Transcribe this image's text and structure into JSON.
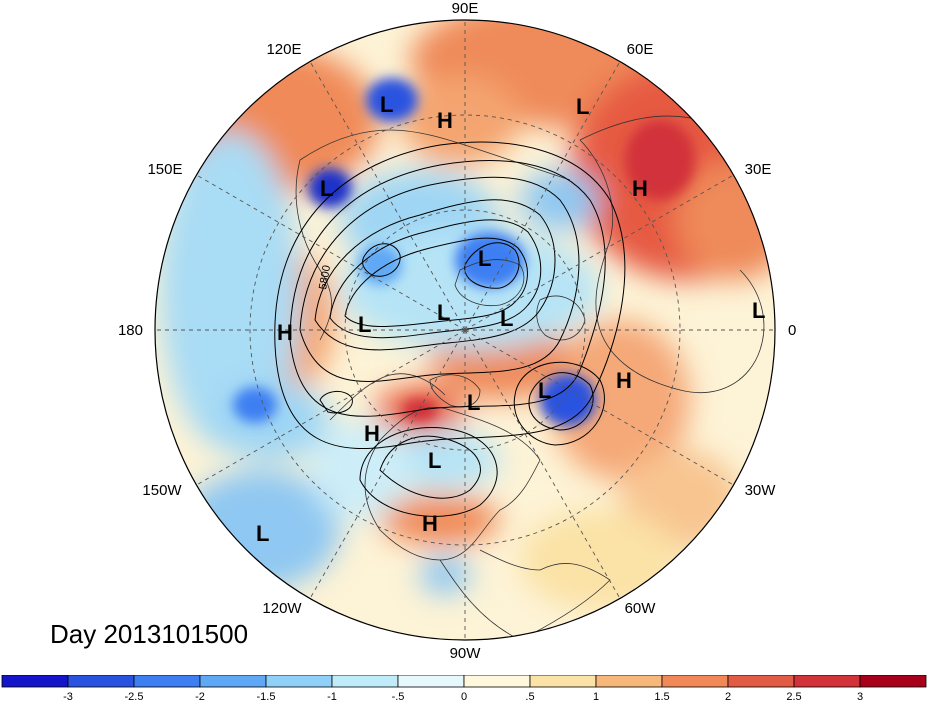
{
  "title": "Day 2013101500",
  "map": {
    "projection": "polar stereographic (north pole)",
    "graticule": "dashed",
    "longitude_labels": [
      "90E",
      "60E",
      "30E",
      "0",
      "30W",
      "60W",
      "90W",
      "120W",
      "150W",
      "180",
      "150E",
      "120E"
    ],
    "contour_label": "5800",
    "pressure_centers": [
      {
        "type": "L",
        "region": "north-east Siberia"
      },
      {
        "type": "H",
        "region": "north-central Siberia"
      },
      {
        "type": "L",
        "region": "north Russia"
      },
      {
        "type": "L",
        "region": "Kamchatka"
      },
      {
        "type": "H",
        "region": "western Russia"
      },
      {
        "type": "L",
        "region": "Arctic Ocean"
      },
      {
        "type": "L",
        "region": "Arctic (near Bering side)"
      },
      {
        "type": "L",
        "region": "Arctic (central)"
      },
      {
        "type": "L",
        "region": "Arctic (Atlantic side)"
      },
      {
        "type": "H",
        "region": "North Pacific (dateline)"
      },
      {
        "type": "L",
        "region": "North Africa"
      },
      {
        "type": "H",
        "region": "North Atlantic (east)"
      },
      {
        "type": "L",
        "region": "North Atlantic"
      },
      {
        "type": "L",
        "region": "Hudson Bay"
      },
      {
        "type": "H",
        "region": "Alaska / NE Pacific"
      },
      {
        "type": "L",
        "region": "central North America"
      },
      {
        "type": "H",
        "region": "Gulf of Mexico"
      },
      {
        "type": "L",
        "region": "subtropical Pacific"
      }
    ]
  },
  "colorbar": {
    "ticks": [
      "-3",
      "-2.5",
      "-2",
      "-1.5",
      "-1",
      "-.5",
      "0",
      ".5",
      "1",
      "1.5",
      "2",
      "2.5",
      "3"
    ],
    "colors": [
      "#1414c8",
      "#2a52e0",
      "#3d7ff2",
      "#5ea8f5",
      "#8fd0f8",
      "#c0ecfa",
      "#e6f8fc",
      "#fff8dc",
      "#fbe2a6",
      "#f7b67a",
      "#f08858",
      "#e25b44",
      "#d2323a",
      "#a8001a"
    ]
  }
}
